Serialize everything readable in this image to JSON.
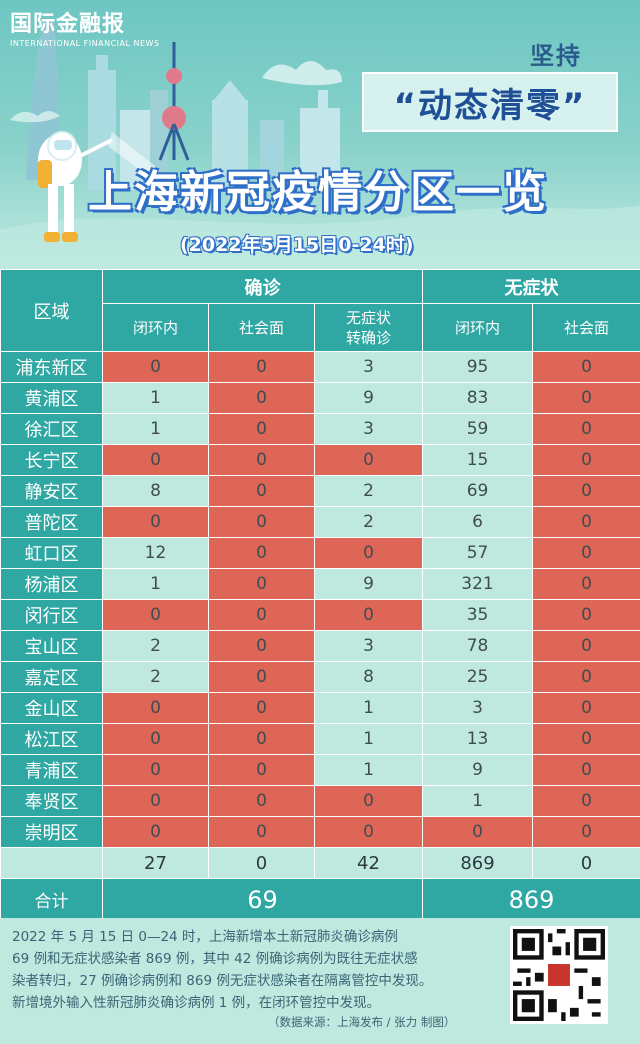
{
  "header": {
    "logo_main": "国际金融报",
    "logo_sub": "INTERNATIONAL FINANCIAL NEWS",
    "tag1": "坚持",
    "tag2": "“动态清零”",
    "title": "上海新冠疫情分区一览",
    "subtitle": "(2022年5月15日0-24时)"
  },
  "table": {
    "col_district": "区域",
    "group_confirmed": "确诊",
    "group_asymptomatic": "无症状",
    "sub_closed_loop": "闭环内",
    "sub_community": "社会面",
    "sub_converted_1": "无症状",
    "sub_converted_2": "转确诊",
    "sub_closed_loop_2": "闭环内",
    "sub_community_2": "社会面",
    "rows": [
      {
        "district": "浦东新区",
        "c1": "0",
        "c2": "0",
        "c3": "3",
        "a1": "95",
        "a2": "0"
      },
      {
        "district": "黄浦区",
        "c1": "1",
        "c2": "0",
        "c3": "9",
        "a1": "83",
        "a2": "0"
      },
      {
        "district": "徐汇区",
        "c1": "1",
        "c2": "0",
        "c3": "3",
        "a1": "59",
        "a2": "0"
      },
      {
        "district": "长宁区",
        "c1": "0",
        "c2": "0",
        "c3": "0",
        "a1": "15",
        "a2": "0"
      },
      {
        "district": "静安区",
        "c1": "8",
        "c2": "0",
        "c3": "2",
        "a1": "69",
        "a2": "0"
      },
      {
        "district": "普陀区",
        "c1": "0",
        "c2": "0",
        "c3": "2",
        "a1": "6",
        "a2": "0"
      },
      {
        "district": "虹口区",
        "c1": "12",
        "c2": "0",
        "c3": "0",
        "a1": "57",
        "a2": "0"
      },
      {
        "district": "杨浦区",
        "c1": "1",
        "c2": "0",
        "c3": "9",
        "a1": "321",
        "a2": "0"
      },
      {
        "district": "闵行区",
        "c1": "0",
        "c2": "0",
        "c3": "0",
        "a1": "35",
        "a2": "0"
      },
      {
        "district": "宝山区",
        "c1": "2",
        "c2": "0",
        "c3": "3",
        "a1": "78",
        "a2": "0"
      },
      {
        "district": "嘉定区",
        "c1": "2",
        "c2": "0",
        "c3": "8",
        "a1": "25",
        "a2": "0"
      },
      {
        "district": "金山区",
        "c1": "0",
        "c2": "0",
        "c3": "1",
        "a1": "3",
        "a2": "0"
      },
      {
        "district": "松江区",
        "c1": "0",
        "c2": "0",
        "c3": "1",
        "a1": "13",
        "a2": "0"
      },
      {
        "district": "青浦区",
        "c1": "0",
        "c2": "0",
        "c3": "1",
        "a1": "9",
        "a2": "0"
      },
      {
        "district": "奉贤区",
        "c1": "0",
        "c2": "0",
        "c3": "0",
        "a1": "1",
        "a2": "0"
      },
      {
        "district": "崇明区",
        "c1": "0",
        "c2": "0",
        "c3": "0",
        "a1": "0",
        "a2": "0"
      }
    ],
    "totals": {
      "c1": "27",
      "c2": "0",
      "c3": "42",
      "a1": "869",
      "a2": "0"
    },
    "sum_label": "合计",
    "sum_confirmed": "69",
    "sum_asymptomatic": "869"
  },
  "footer": {
    "line1": "2022 年 5 月 15 日 0—24 时，上海新增本土新冠肺炎确诊病例",
    "line2": "69 例和无症状感染者 869 例，其中 42 例确诊病例为既往无症状感",
    "line3": "染者转归，27 例确诊病例和 869 例无症状感染者在隔离管控中发现。",
    "line4": "新增境外输入性新冠肺炎确诊病例 1 例，在闭环管控中发现。",
    "source": "（数据来源：上海发布 / 张力 制图）"
  },
  "colors": {
    "teal": "#2fa7a3",
    "zero": "#de6657",
    "mint": "#bfe9df",
    "title_shadow": "#2f6fc8"
  },
  "icons": [
    "city-skyline-illustration",
    "disinfection-worker-illustration",
    "qr-code"
  ]
}
